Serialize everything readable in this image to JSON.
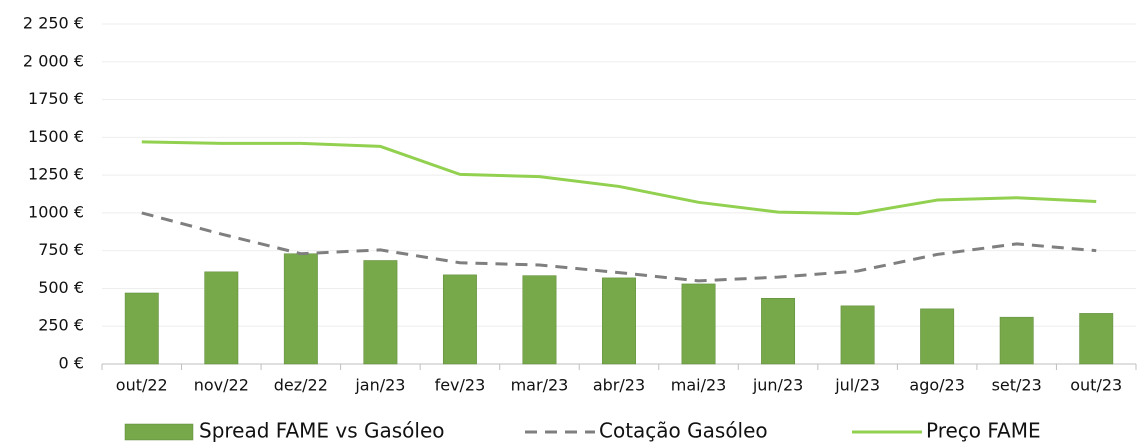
{
  "chart_data": {
    "type": "bar",
    "categories": [
      "out/22",
      "nov/22",
      "dez/22",
      "jan/23",
      "fev/23",
      "mar/23",
      "abr/23",
      "mai/23",
      "jun/23",
      "jul/23",
      "ago/23",
      "set/23",
      "out/23"
    ],
    "series": [
      {
        "name": "Spread FAME vs Gasóleo",
        "type": "bar",
        "color": "#77a84a",
        "values": [
          470,
          610,
          730,
          685,
          590,
          585,
          570,
          530,
          435,
          385,
          365,
          310,
          335
        ]
      },
      {
        "name": "Cotação Gasóleo",
        "type": "line",
        "dashed": true,
        "color": "#7f7f7f",
        "values": [
          1000,
          860,
          730,
          755,
          670,
          655,
          605,
          550,
          575,
          615,
          725,
          795,
          750
        ]
      },
      {
        "name": "Preço FAME",
        "type": "line",
        "color": "#92d050",
        "values": [
          1470,
          1460,
          1460,
          1440,
          1255,
          1240,
          1175,
          1070,
          1005,
          995,
          1085,
          1100,
          1075
        ]
      }
    ],
    "ylim": [
      0,
      2250
    ],
    "yticks": [
      {
        "value": 0,
        "label": "0 €"
      },
      {
        "value": 250,
        "label": "250 €"
      },
      {
        "value": 500,
        "label": "500 €"
      },
      {
        "value": 750,
        "label": "750 €"
      },
      {
        "value": 1000,
        "label": "1000 €"
      },
      {
        "value": 1250,
        "label": "1250 €"
      },
      {
        "value": 1500,
        "label": "1500 €"
      },
      {
        "value": 1750,
        "label": "1750 €"
      },
      {
        "value": 2000,
        "label": "2 000 €"
      },
      {
        "value": 2250,
        "label": "2 250 €"
      }
    ],
    "grid": true,
    "legend": "bottom"
  }
}
